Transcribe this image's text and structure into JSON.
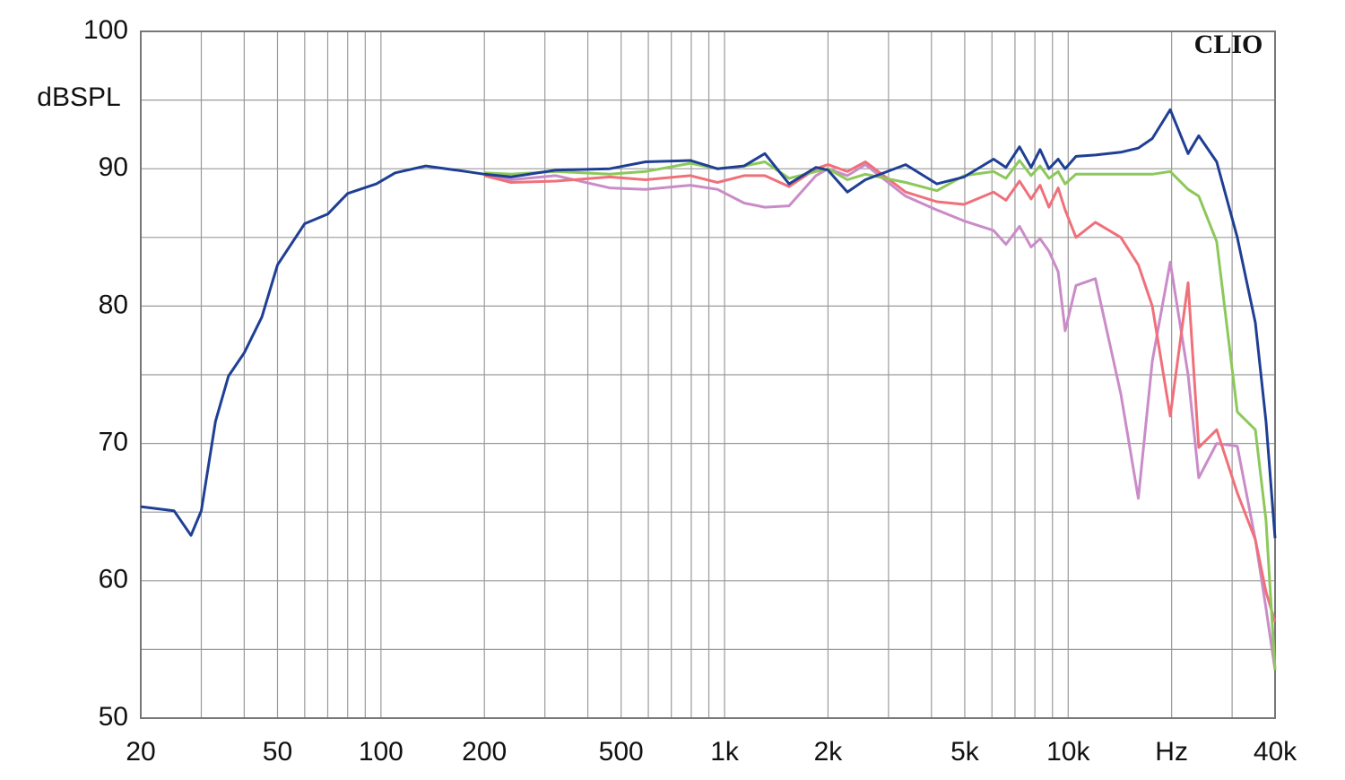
{
  "chart_data": {
    "type": "line",
    "y_label": "dBSPL",
    "annotation": "CLIO",
    "x_scale": "log",
    "grid": true,
    "x": [
      20,
      25,
      28,
      30,
      33,
      36,
      40,
      45,
      50,
      60,
      70,
      80,
      97,
      110,
      135,
      177,
      200,
      239,
      323,
      463,
      589,
      796,
      953,
      1140,
      1310,
      1541,
      1845,
      2000,
      2277,
      2569,
      3365,
      4150,
      4975,
      6065,
      6590,
      7215,
      7800,
      8280,
      8790,
      9350,
      9800,
      10540,
      12000,
      14230,
      16000,
      17570,
      19810,
      22330,
      23990,
      27050,
      31060,
      35050,
      37650,
      40000
    ],
    "series": [
      {
        "color": "#c98cc8",
        "values": [
          null,
          null,
          null,
          null,
          null,
          null,
          null,
          null,
          null,
          null,
          null,
          null,
          null,
          null,
          null,
          null,
          89.5,
          89.2,
          89.5,
          88.6,
          88.5,
          88.8,
          88.5,
          87.5,
          87.2,
          87.3,
          89.5,
          90,
          89.5,
          90.3,
          88,
          87,
          86.2,
          85.5,
          84.5,
          85.8,
          84.3,
          84.9,
          84,
          82.5,
          78.2,
          81.5,
          82,
          73.6,
          66,
          76,
          83.2,
          75,
          67.5,
          70,
          69.8,
          63,
          58,
          53.5
        ]
      },
      {
        "color": "#f0707a",
        "values": [
          null,
          null,
          null,
          null,
          null,
          null,
          null,
          null,
          null,
          null,
          null,
          null,
          null,
          null,
          null,
          null,
          89.5,
          89,
          89.1,
          89.4,
          89.2,
          89.5,
          89,
          89.5,
          89.5,
          88.7,
          90,
          90.3,
          89.8,
          90.5,
          88.3,
          87.6,
          87.4,
          88.3,
          87.7,
          89.1,
          87.8,
          88.8,
          87.2,
          88.6,
          87,
          85,
          86.1,
          85,
          83,
          80,
          72,
          81.7,
          69.7,
          71,
          66.4,
          63,
          59.2,
          57
        ]
      },
      {
        "color": "#8cc85a",
        "values": [
          null,
          null,
          null,
          null,
          null,
          null,
          null,
          null,
          null,
          null,
          null,
          null,
          null,
          null,
          null,
          null,
          89.7,
          89.6,
          89.8,
          89.6,
          89.8,
          90.4,
          90,
          90.2,
          90.5,
          89.3,
          89.8,
          90,
          89.2,
          89.6,
          89,
          88.4,
          89.5,
          89.8,
          89.3,
          90.6,
          89.5,
          90.2,
          89.3,
          89.8,
          88.9,
          89.6,
          89.6,
          89.6,
          89.6,
          89.6,
          89.8,
          88.5,
          88,
          84.7,
          72.3,
          71,
          64.4,
          53.5
        ]
      },
      {
        "color": "#1f3f94",
        "values": [
          65.4,
          65.1,
          63.3,
          65.1,
          71.6,
          74.9,
          76.6,
          79.2,
          83,
          86,
          86.7,
          88.2,
          88.9,
          89.7,
          90.2,
          89.8,
          89.6,
          89.4,
          89.9,
          90,
          90.5,
          90.6,
          90,
          90.2,
          91.1,
          88.9,
          90.1,
          89.9,
          88.3,
          89.2,
          90.3,
          88.9,
          89.4,
          90.7,
          90.1,
          91.6,
          90.1,
          91.4,
          90,
          90.7,
          90,
          90.9,
          91,
          91.2,
          91.5,
          92.2,
          94.3,
          91.1,
          92.4,
          90.5,
          85,
          78.8,
          71.6,
          63.1
        ]
      }
    ],
    "xlim": [
      20,
      40000
    ],
    "xticks": [
      20,
      50,
      100,
      200,
      500,
      {
        "value": 1000,
        "label": "1k"
      },
      {
        "value": 2000,
        "label": "2k"
      },
      {
        "value": 5000,
        "label": "5k"
      },
      {
        "value": 10000,
        "label": "10k"
      },
      {
        "value": 20000,
        "label": "Hz"
      },
      {
        "value": 40000,
        "label": "40k"
      }
    ],
    "xgrid_minor": [
      30,
      40,
      60,
      70,
      80,
      90,
      300,
      400,
      600,
      700,
      800,
      900,
      3000,
      4000,
      6000,
      7000,
      8000,
      9000,
      30000
    ],
    "ylim": [
      50,
      100
    ],
    "yticks": [
      50,
      60,
      70,
      80,
      90,
      100
    ],
    "ygrid_minor": [
      55,
      65,
      75,
      85,
      95
    ]
  }
}
